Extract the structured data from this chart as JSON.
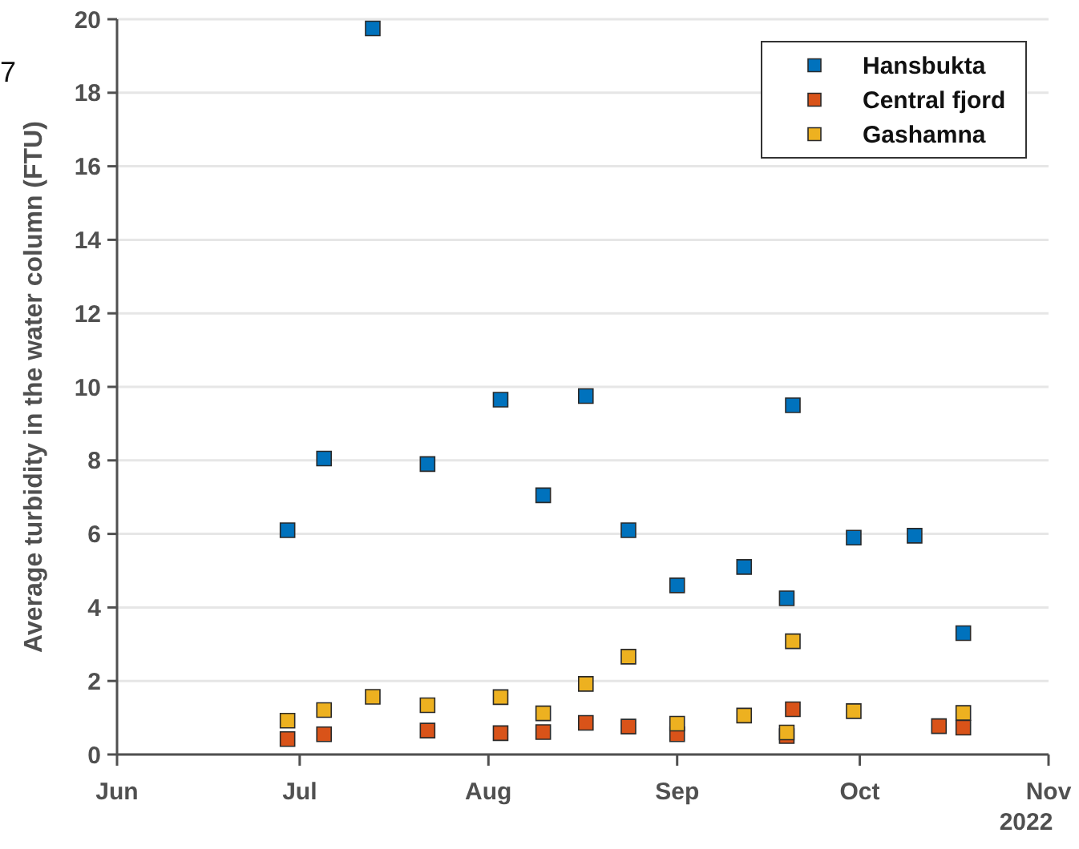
{
  "chart_data": {
    "type": "scatter",
    "ylabel": "Average turbidity in the water column (FTU)",
    "annotations": [
      "2022",
      "7"
    ],
    "xlim": [
      "2022-06-01",
      "2022-11-01"
    ],
    "xticks": [
      {
        "value": "2022-06-01",
        "label": "Jun"
      },
      {
        "value": "2022-07-01",
        "label": "Jul"
      },
      {
        "value": "2022-08-01",
        "label": "Aug"
      },
      {
        "value": "2022-09-01",
        "label": "Sep"
      },
      {
        "value": "2022-10-01",
        "label": "Oct"
      },
      {
        "value": "2022-11-01",
        "label": "Nov"
      }
    ],
    "ylim": [
      0,
      20
    ],
    "yticks": [
      0,
      2,
      4,
      6,
      8,
      10,
      12,
      14,
      16,
      18,
      20
    ],
    "grid": "y",
    "legend": "top right",
    "marker": "square",
    "series": [
      {
        "name": "Hansbukta",
        "color": "#0072bd",
        "x": [
          "2022-06-29",
          "2022-07-05",
          "2022-07-13",
          "2022-07-22",
          "2022-08-03",
          "2022-08-10",
          "2022-08-17",
          "2022-08-24",
          "2022-09-01",
          "2022-09-12",
          "2022-09-19",
          "2022-09-20",
          "2022-09-30",
          "2022-10-10",
          "2022-10-18"
        ],
        "values": [
          6.1,
          8.05,
          19.75,
          7.9,
          9.65,
          7.05,
          9.75,
          6.1,
          4.6,
          5.1,
          4.25,
          9.5,
          5.9,
          5.95,
          3.3
        ]
      },
      {
        "name": "Central fjord",
        "color": "#d95319",
        "x": [
          "2022-06-29",
          "2022-07-05",
          "2022-07-22",
          "2022-08-03",
          "2022-08-10",
          "2022-08-17",
          "2022-08-24",
          "2022-09-01",
          "2022-09-19",
          "2022-09-20",
          "2022-10-14",
          "2022-10-18"
        ],
        "values": [
          0.42,
          0.55,
          0.65,
          0.58,
          0.61,
          0.86,
          0.76,
          0.55,
          0.5,
          1.23,
          0.77,
          0.73
        ]
      },
      {
        "name": "Gashamna",
        "color": "#edb120",
        "x": [
          "2022-06-29",
          "2022-07-05",
          "2022-07-13",
          "2022-07-22",
          "2022-08-03",
          "2022-08-10",
          "2022-08-17",
          "2022-08-24",
          "2022-09-01",
          "2022-09-12",
          "2022-09-19",
          "2022-09-20",
          "2022-09-30",
          "2022-10-18"
        ],
        "values": [
          0.92,
          1.21,
          1.57,
          1.34,
          1.56,
          1.12,
          1.92,
          2.66,
          0.84,
          1.06,
          0.6,
          3.08,
          1.18,
          1.13
        ]
      }
    ]
  }
}
